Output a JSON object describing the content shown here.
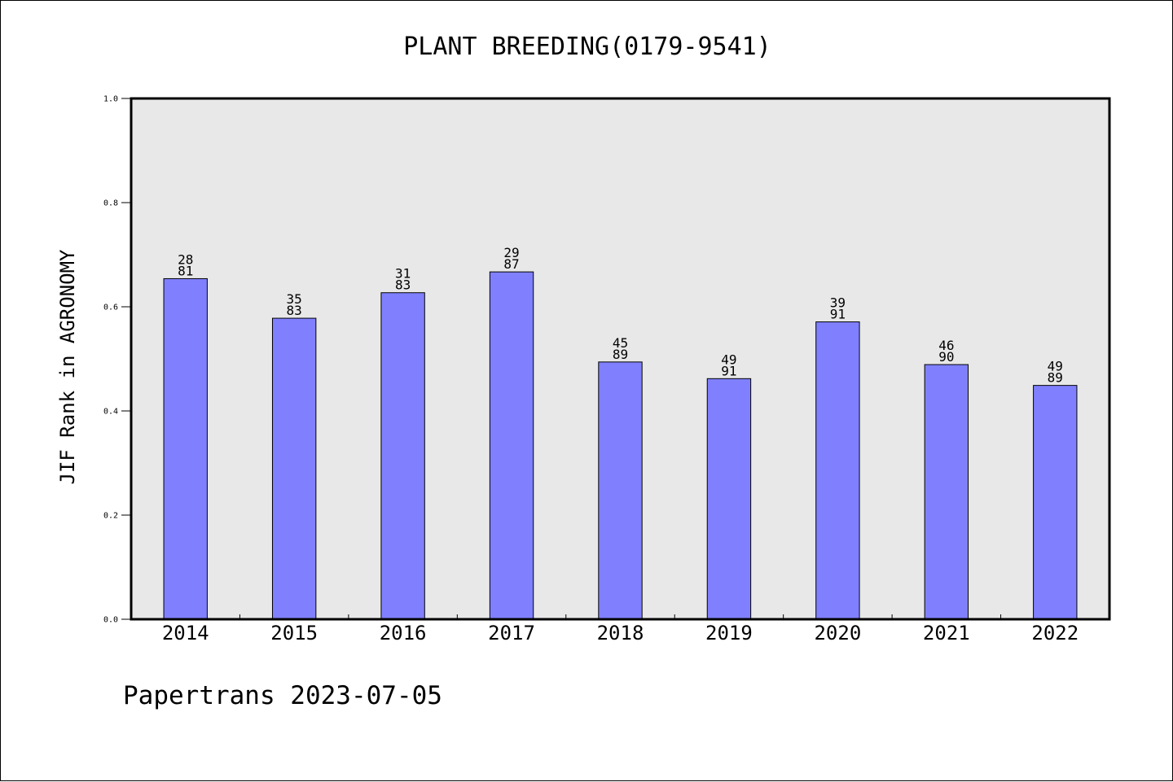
{
  "chart_data": {
    "type": "bar",
    "title": "PLANT BREEDING(0179-9541)",
    "ylabel": "JIF Rank in AGRONOMY",
    "xlabel": "",
    "ylim": [
      0,
      1.0
    ],
    "yticks": [
      "0.0",
      "0.2",
      "0.4",
      "0.6",
      "0.8",
      "1.0"
    ],
    "categories": [
      "2014",
      "2015",
      "2016",
      "2017",
      "2018",
      "2019",
      "2020",
      "2021",
      "2022"
    ],
    "values": [
      0.654,
      0.578,
      0.627,
      0.667,
      0.494,
      0.462,
      0.571,
      0.489,
      0.449
    ],
    "labels_top": [
      "28",
      "35",
      "31",
      "29",
      "45",
      "49",
      "39",
      "46",
      "49"
    ],
    "labels_bottom": [
      "81",
      "83",
      "83",
      "87",
      "89",
      "91",
      "91",
      "90",
      "89"
    ],
    "grid": false,
    "legend": "none",
    "bar_color": "#8080ff",
    "plot_background": "#e8e8e8"
  },
  "footer": {
    "text": "Papertrans 2023-07-05"
  }
}
